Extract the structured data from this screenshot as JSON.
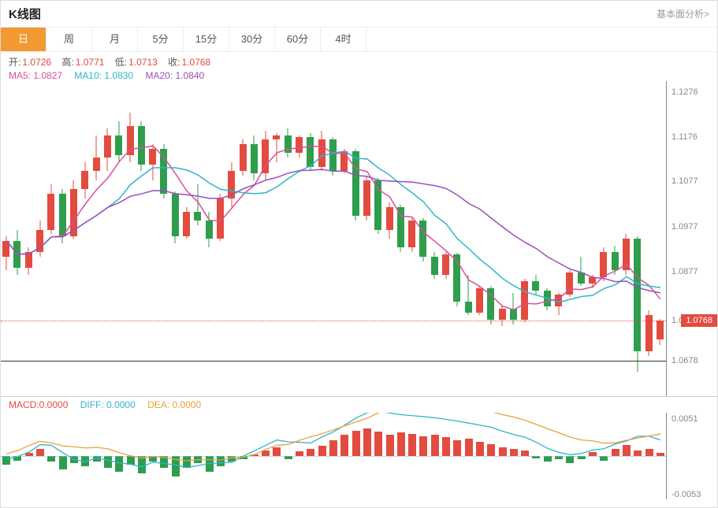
{
  "title": "K线图",
  "link_right": "基本面分析>",
  "tabs": [
    "日",
    "周",
    "月",
    "5分",
    "15分",
    "30分",
    "60分",
    "4时"
  ],
  "active_tab": 0,
  "ohlc_labels": {
    "open": "开:",
    "high": "高:",
    "low": "低:",
    "close": "收:"
  },
  "ohlc": {
    "open": "1.0726",
    "high": "1.0771",
    "low": "1.0713",
    "close": "1.0768"
  },
  "ohlc_color": "#e34b3f",
  "ma_labels": {
    "ma5": "MA5: 1.0827",
    "ma10": "MA10: 1.0830",
    "ma20": "MA20: 1.0840"
  },
  "ma_colors": {
    "ma5": "#d94f9a",
    "ma10": "#2fb4cc",
    "ma20": "#9a4dbd"
  },
  "main_chart": {
    "type": "candlestick",
    "ymin": 1.06,
    "ymax": 1.13,
    "yticks": [
      1.1276,
      1.1176,
      1.1077,
      1.0977,
      1.0877,
      1.0768,
      1.0678
    ],
    "current_price": 1.0768,
    "baseline": 1.0678,
    "colors": {
      "up": "#e34b3f",
      "down": "#2e9e4d",
      "grid": "#eeeeee",
      "axis_text": "#888888"
    },
    "candle_width": 9,
    "candles": [
      {
        "o": 1.091,
        "h": 1.0955,
        "l": 1.088,
        "c": 1.0945,
        "d": "u"
      },
      {
        "o": 1.0945,
        "h": 1.097,
        "l": 1.087,
        "c": 1.0885,
        "d": "d"
      },
      {
        "o": 1.0885,
        "h": 1.093,
        "l": 1.087,
        "c": 1.092,
        "d": "u"
      },
      {
        "o": 1.092,
        "h": 1.099,
        "l": 1.091,
        "c": 1.097,
        "d": "u"
      },
      {
        "o": 1.097,
        "h": 1.107,
        "l": 1.096,
        "c": 1.105,
        "d": "u"
      },
      {
        "o": 1.105,
        "h": 1.106,
        "l": 1.094,
        "c": 1.0955,
        "d": "d"
      },
      {
        "o": 1.0955,
        "h": 1.108,
        "l": 1.095,
        "c": 1.106,
        "d": "u"
      },
      {
        "o": 1.106,
        "h": 1.112,
        "l": 1.104,
        "c": 1.11,
        "d": "u"
      },
      {
        "o": 1.11,
        "h": 1.118,
        "l": 1.108,
        "c": 1.113,
        "d": "u"
      },
      {
        "o": 1.113,
        "h": 1.1195,
        "l": 1.11,
        "c": 1.118,
        "d": "u"
      },
      {
        "o": 1.118,
        "h": 1.121,
        "l": 1.112,
        "c": 1.1135,
        "d": "d"
      },
      {
        "o": 1.1135,
        "h": 1.123,
        "l": 1.112,
        "c": 1.12,
        "d": "u"
      },
      {
        "o": 1.12,
        "h": 1.121,
        "l": 1.11,
        "c": 1.1115,
        "d": "d"
      },
      {
        "o": 1.1115,
        "h": 1.116,
        "l": 1.108,
        "c": 1.115,
        "d": "u"
      },
      {
        "o": 1.115,
        "h": 1.116,
        "l": 1.104,
        "c": 1.105,
        "d": "d"
      },
      {
        "o": 1.105,
        "h": 1.1055,
        "l": 1.094,
        "c": 1.0955,
        "d": "d"
      },
      {
        "o": 1.0955,
        "h": 1.102,
        "l": 1.095,
        "c": 1.101,
        "d": "u"
      },
      {
        "o": 1.101,
        "h": 1.107,
        "l": 1.098,
        "c": 1.099,
        "d": "d"
      },
      {
        "o": 1.099,
        "h": 1.101,
        "l": 1.093,
        "c": 1.095,
        "d": "d"
      },
      {
        "o": 1.095,
        "h": 1.105,
        "l": 1.0945,
        "c": 1.104,
        "d": "u"
      },
      {
        "o": 1.104,
        "h": 1.112,
        "l": 1.102,
        "c": 1.11,
        "d": "u"
      },
      {
        "o": 1.11,
        "h": 1.117,
        "l": 1.109,
        "c": 1.116,
        "d": "u"
      },
      {
        "o": 1.116,
        "h": 1.118,
        "l": 1.108,
        "c": 1.1095,
        "d": "d"
      },
      {
        "o": 1.1095,
        "h": 1.119,
        "l": 1.108,
        "c": 1.117,
        "d": "u"
      },
      {
        "o": 1.117,
        "h": 1.1185,
        "l": 1.112,
        "c": 1.118,
        "d": "u"
      },
      {
        "o": 1.118,
        "h": 1.1195,
        "l": 1.113,
        "c": 1.114,
        "d": "d"
      },
      {
        "o": 1.114,
        "h": 1.118,
        "l": 1.113,
        "c": 1.1175,
        "d": "u"
      },
      {
        "o": 1.1175,
        "h": 1.1185,
        "l": 1.11,
        "c": 1.111,
        "d": "d"
      },
      {
        "o": 1.111,
        "h": 1.119,
        "l": 1.11,
        "c": 1.117,
        "d": "u"
      },
      {
        "o": 1.117,
        "h": 1.1175,
        "l": 1.109,
        "c": 1.11,
        "d": "d"
      },
      {
        "o": 1.11,
        "h": 1.115,
        "l": 1.1095,
        "c": 1.1145,
        "d": "u"
      },
      {
        "o": 1.1145,
        "h": 1.115,
        "l": 1.099,
        "c": 1.1,
        "d": "d"
      },
      {
        "o": 1.1,
        "h": 1.109,
        "l": 1.099,
        "c": 1.108,
        "d": "u"
      },
      {
        "o": 1.108,
        "h": 1.1085,
        "l": 1.096,
        "c": 1.097,
        "d": "d"
      },
      {
        "o": 1.097,
        "h": 1.103,
        "l": 1.095,
        "c": 1.102,
        "d": "u"
      },
      {
        "o": 1.102,
        "h": 1.1025,
        "l": 1.092,
        "c": 1.093,
        "d": "d"
      },
      {
        "o": 1.093,
        "h": 1.0995,
        "l": 1.092,
        "c": 1.099,
        "d": "u"
      },
      {
        "o": 1.099,
        "h": 1.0995,
        "l": 1.09,
        "c": 1.091,
        "d": "d"
      },
      {
        "o": 1.091,
        "h": 1.092,
        "l": 1.086,
        "c": 1.087,
        "d": "d"
      },
      {
        "o": 1.087,
        "h": 1.092,
        "l": 1.086,
        "c": 1.0915,
        "d": "u"
      },
      {
        "o": 1.0915,
        "h": 1.0918,
        "l": 1.08,
        "c": 1.081,
        "d": "d"
      },
      {
        "o": 1.081,
        "h": 1.087,
        "l": 1.078,
        "c": 1.0785,
        "d": "d"
      },
      {
        "o": 1.0785,
        "h": 1.0845,
        "l": 1.078,
        "c": 1.084,
        "d": "u"
      },
      {
        "o": 1.084,
        "h": 1.0845,
        "l": 1.076,
        "c": 1.077,
        "d": "d"
      },
      {
        "o": 1.077,
        "h": 1.08,
        "l": 1.0755,
        "c": 1.0795,
        "d": "u"
      },
      {
        "o": 1.0795,
        "h": 1.083,
        "l": 1.076,
        "c": 1.077,
        "d": "d"
      },
      {
        "o": 1.077,
        "h": 1.086,
        "l": 1.0765,
        "c": 1.0855,
        "d": "u"
      },
      {
        "o": 1.0855,
        "h": 1.087,
        "l": 1.0825,
        "c": 1.0835,
        "d": "d"
      },
      {
        "o": 1.0835,
        "h": 1.084,
        "l": 1.079,
        "c": 1.08,
        "d": "d"
      },
      {
        "o": 1.08,
        "h": 1.083,
        "l": 1.078,
        "c": 1.0825,
        "d": "u"
      },
      {
        "o": 1.0825,
        "h": 1.088,
        "l": 1.082,
        "c": 1.0875,
        "d": "u"
      },
      {
        "o": 1.0875,
        "h": 1.091,
        "l": 1.0845,
        "c": 1.085,
        "d": "d"
      },
      {
        "o": 1.085,
        "h": 1.087,
        "l": 1.084,
        "c": 1.0865,
        "d": "u"
      },
      {
        "o": 1.0865,
        "h": 1.093,
        "l": 1.0855,
        "c": 1.092,
        "d": "u"
      },
      {
        "o": 1.092,
        "h": 1.0935,
        "l": 1.087,
        "c": 1.088,
        "d": "d"
      },
      {
        "o": 1.088,
        "h": 1.096,
        "l": 1.087,
        "c": 1.095,
        "d": "u"
      },
      {
        "o": 1.095,
        "h": 1.0955,
        "l": 1.0655,
        "c": 1.07,
        "d": "d"
      },
      {
        "o": 1.07,
        "h": 1.079,
        "l": 1.069,
        "c": 1.078,
        "d": "u"
      },
      {
        "o": 1.0726,
        "h": 1.0771,
        "l": 1.0713,
        "c": 1.0768,
        "d": "u"
      }
    ],
    "ma5_offset": -0.0015,
    "ma10_offset": -0.0035,
    "ma20_offset": -0.0055
  },
  "macd_header": {
    "macd": "MACD:0.0000",
    "diff": "DIFF: 0.0000",
    "dea": "DEA: 0.0000"
  },
  "macd_chart": {
    "type": "macd",
    "ymin": -0.006,
    "ymax": 0.006,
    "yticks": [
      0.0051,
      -0.0053
    ],
    "zero": 0,
    "colors": {
      "pos": "#e34b3f",
      "neg": "#2e9e4d",
      "diff": "#2fb4cc",
      "dea": "#e8a23c"
    },
    "bars": [
      -0.0012,
      -0.0006,
      0.0004,
      0.001,
      -0.0008,
      -0.0018,
      -0.001,
      -0.0014,
      -0.0008,
      -0.0016,
      -0.0022,
      -0.0012,
      -0.0024,
      -0.0008,
      -0.0016,
      -0.0028,
      -0.0016,
      -0.001,
      -0.0022,
      -0.0014,
      -0.0008,
      -0.0004,
      0.0002,
      0.0008,
      0.0012,
      -0.0004,
      0.0007,
      0.001,
      0.0014,
      0.0022,
      0.003,
      0.0035,
      0.0038,
      0.0034,
      0.003,
      0.0033,
      0.0031,
      0.0027,
      0.003,
      0.0026,
      0.0022,
      0.0024,
      0.002,
      0.0016,
      0.0012,
      0.001,
      0.0008,
      -0.0003,
      -0.0008,
      -0.0004,
      -0.001,
      -0.0004,
      0.0006,
      -0.0006,
      0.001,
      0.0015,
      0.0008,
      0.001,
      0.0004
    ],
    "diff_line_offset": 0.0012,
    "dea_line_offset": 0.0022
  }
}
